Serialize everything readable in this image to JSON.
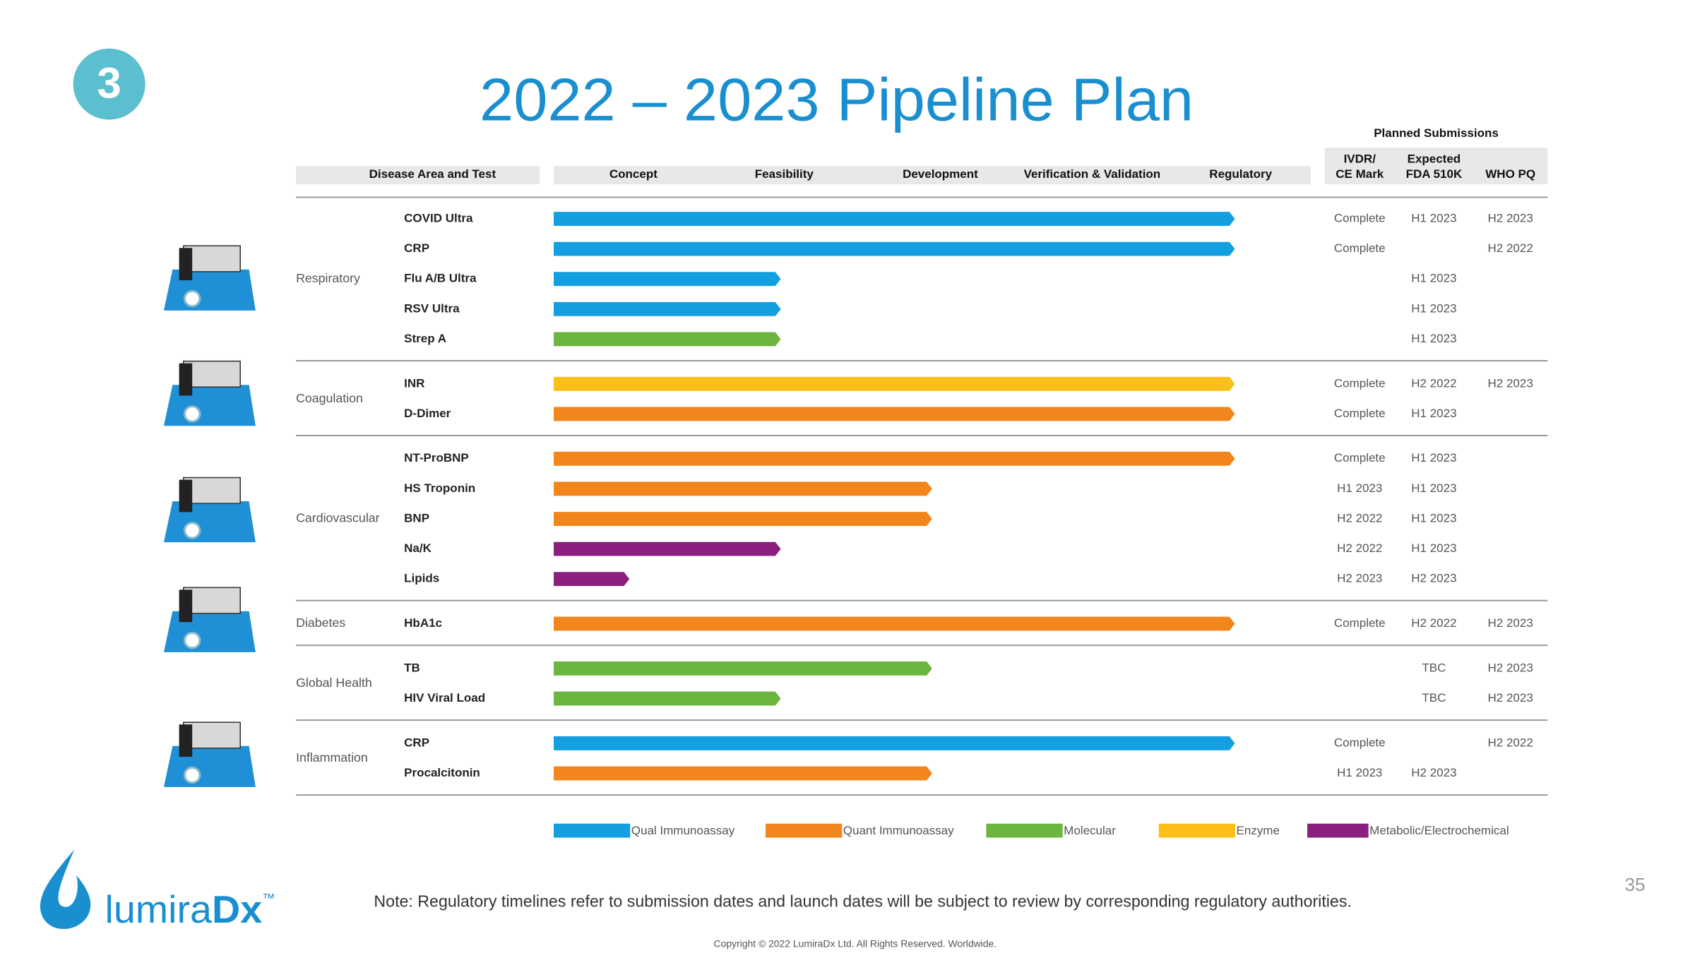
{
  "slide_number": "3",
  "title": "2022 – 2023 Pipeline Plan",
  "planned_submissions": "Planned Submissions",
  "headers": {
    "disease": "Disease Area and Test",
    "stages": [
      "Concept",
      "Feasibility",
      "Development",
      "Verification & Validation",
      "Regulatory"
    ],
    "submissions": [
      [
        "IVDR/",
        "CE Mark"
      ],
      [
        "Expected",
        "FDA 510K"
      ],
      [
        "WHO PQ"
      ]
    ]
  },
  "groups": [
    {
      "name": "Respiratory",
      "tests": [
        {
          "name": "COVID Ultra",
          "progress": 4.5,
          "color": "#139fe0",
          "ivdr": "Complete",
          "fda": "H1 2023",
          "who": "H2 2023"
        },
        {
          "name": "CRP",
          "progress": 4.5,
          "color": "#139fe0",
          "ivdr": "Complete",
          "who": "H2 2022"
        },
        {
          "name": "Flu A/B Ultra",
          "progress": 1.5,
          "color": "#139fe0",
          "fda": "H1 2023"
        },
        {
          "name": "RSV Ultra",
          "progress": 1.5,
          "color": "#139fe0",
          "fda": "H1 2023"
        },
        {
          "name": "Strep A",
          "progress": 1.5,
          "color": "#6cb63f",
          "fda": "H1 2023"
        }
      ]
    },
    {
      "name": "Coagulation",
      "tests": [
        {
          "name": "INR",
          "progress": 4.5,
          "color": "#fbbf17",
          "ivdr": "Complete",
          "fda": "H2 2022",
          "who": "H2 2023"
        },
        {
          "name": "D-Dimer",
          "progress": 4.5,
          "color": "#f2861c",
          "ivdr": "Complete",
          "fda": "H1 2023"
        }
      ]
    },
    {
      "name": "Cardiovascular",
      "tests": [
        {
          "name": "NT-ProBNP",
          "progress": 4.5,
          "color": "#f2861c",
          "ivdr": "Complete",
          "fda": "H1 2023"
        },
        {
          "name": "HS Troponin",
          "progress": 2.5,
          "color": "#f2861c",
          "ivdr": "H1 2023",
          "fda": "H1 2023"
        },
        {
          "name": "BNP",
          "progress": 2.5,
          "color": "#f2861c",
          "ivdr": "H2 2022",
          "fda": "H1 2023"
        },
        {
          "name": "Na/K",
          "progress": 1.5,
          "color": "#8a1f7e",
          "ivdr": "H2 2022",
          "fda": "H1 2023"
        },
        {
          "name": "Lipids",
          "progress": 0.5,
          "color": "#8a1f7e",
          "ivdr": "H2 2023",
          "fda": "H2 2023"
        }
      ]
    },
    {
      "name": "Diabetes",
      "tests": [
        {
          "name": "HbA1c",
          "progress": 4.5,
          "color": "#f2861c",
          "ivdr": "Complete",
          "fda": "H2 2022",
          "who": "H2 2023"
        }
      ]
    },
    {
      "name": "Global Health",
      "tests": [
        {
          "name": "TB",
          "progress": 2.5,
          "color": "#6cb63f",
          "fda": "TBC",
          "who": "H2 2023"
        },
        {
          "name": "HIV Viral Load",
          "progress": 1.5,
          "color": "#6cb63f",
          "fda": "TBC",
          "who": "H2 2023"
        }
      ]
    },
    {
      "name": "Inflammation",
      "tests": [
        {
          "name": "CRP",
          "progress": 4.5,
          "color": "#139fe0",
          "ivdr": "Complete",
          "who": "H2 2022"
        },
        {
          "name": "Procalcitonin",
          "progress": 2.5,
          "color": "#f2861c",
          "ivdr": "H1 2023",
          "fda": "H2 2023"
        }
      ]
    }
  ],
  "legend": [
    {
      "name": "Qual Immunoassay",
      "color": "#139fe0"
    },
    {
      "name": "Quant Immunoassay",
      "color": "#f2861c"
    },
    {
      "name": "Molecular",
      "color": "#6cb63f"
    },
    {
      "name": "Enzyme",
      "color": "#fbbf17"
    },
    {
      "name": "Metabolic/Electrochemical",
      "color": "#8a1f7e"
    }
  ],
  "logo": {
    "name": "lumira",
    "suffix": "Dx",
    "mark": "™"
  },
  "note": "Note: Regulatory  timelines refer to submission dates and launch dates will be subject to review  by corresponding  regulatory  authorities.",
  "page_number": "35",
  "copyright": "Copyright  © 2022  LumiraDx  Ltd.  All Rights Reserved.  Worldwide."
}
